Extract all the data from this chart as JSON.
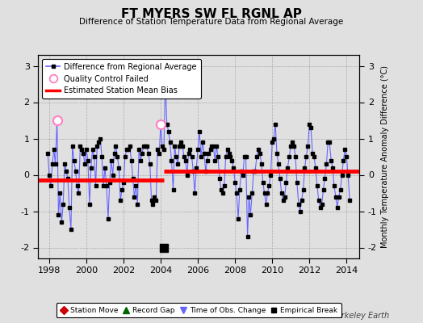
{
  "title": "FT MYERS SW FL RGNL AP",
  "subtitle": "Difference of Station Temperature Data from Regional Average",
  "ylabel": "Monthly Temperature Anomaly Difference (°C)",
  "xlabel_values": [
    1998,
    2000,
    2002,
    2004,
    2006,
    2008,
    2010,
    2012,
    2014
  ],
  "ylim": [
    -2.3,
    3.3
  ],
  "yticks": [
    -2,
    -1,
    0,
    1,
    2,
    3
  ],
  "bias_before_y": -0.15,
  "bias_after_y": 0.1,
  "bias_split": 2004.17,
  "line_color": "#6666FF",
  "marker_color": "#000000",
  "bias_color": "#FF0000",
  "bg_color": "#E0E0E0",
  "grid_color": "#AAAAAA",
  "berkeley_earth_text": "Berkeley Earth",
  "time_obs_marker_x": 2004.17,
  "empirical_break_x": 2004.17,
  "empirical_break_y": -2.0,
  "qc_failed_points": [
    [
      1998.42,
      1.5
    ],
    [
      2004.0,
      1.4
    ]
  ],
  "series_x": [
    1997.92,
    1998.0,
    1998.08,
    1998.17,
    1998.25,
    1998.33,
    1998.42,
    1998.5,
    1998.58,
    1998.67,
    1998.75,
    1998.83,
    1998.92,
    1999.0,
    1999.08,
    1999.17,
    1999.25,
    1999.33,
    1999.42,
    1999.5,
    1999.58,
    1999.67,
    1999.75,
    1999.83,
    1999.92,
    2000.0,
    2000.08,
    2000.17,
    2000.25,
    2000.33,
    2000.42,
    2000.5,
    2000.58,
    2000.67,
    2000.75,
    2000.83,
    2000.92,
    2001.0,
    2001.08,
    2001.17,
    2001.25,
    2001.33,
    2001.42,
    2001.5,
    2001.58,
    2001.67,
    2001.75,
    2001.83,
    2001.92,
    2002.0,
    2002.08,
    2002.17,
    2002.25,
    2002.33,
    2002.42,
    2002.5,
    2002.58,
    2002.67,
    2002.75,
    2002.83,
    2002.92,
    2003.0,
    2003.08,
    2003.17,
    2003.25,
    2003.33,
    2003.42,
    2003.5,
    2003.58,
    2003.67,
    2003.75,
    2003.83,
    2003.92,
    2004.0,
    2004.08,
    2004.17,
    2004.25,
    2004.33,
    2004.42,
    2004.5,
    2004.58,
    2004.67,
    2004.75,
    2004.83,
    2004.92,
    2005.0,
    2005.08,
    2005.17,
    2005.25,
    2005.33,
    2005.42,
    2005.5,
    2005.58,
    2005.67,
    2005.75,
    2005.83,
    2005.92,
    2006.0,
    2006.08,
    2006.17,
    2006.25,
    2006.33,
    2006.42,
    2006.5,
    2006.58,
    2006.67,
    2006.75,
    2006.83,
    2006.92,
    2007.0,
    2007.08,
    2007.17,
    2007.25,
    2007.33,
    2007.42,
    2007.5,
    2007.58,
    2007.67,
    2007.75,
    2007.83,
    2007.92,
    2008.0,
    2008.08,
    2008.17,
    2008.25,
    2008.33,
    2008.42,
    2008.5,
    2008.58,
    2008.67,
    2008.75,
    2008.83,
    2008.92,
    2009.0,
    2009.08,
    2009.17,
    2009.25,
    2009.33,
    2009.42,
    2009.5,
    2009.58,
    2009.67,
    2009.75,
    2009.83,
    2009.92,
    2010.0,
    2010.08,
    2010.17,
    2010.25,
    2010.33,
    2010.42,
    2010.5,
    2010.58,
    2010.67,
    2010.75,
    2010.83,
    2010.92,
    2011.0,
    2011.08,
    2011.17,
    2011.25,
    2011.33,
    2011.42,
    2011.5,
    2011.58,
    2011.67,
    2011.75,
    2011.83,
    2011.92,
    2012.0,
    2012.08,
    2012.17,
    2012.25,
    2012.33,
    2012.42,
    2012.5,
    2012.58,
    2012.67,
    2012.75,
    2012.83,
    2012.92,
    2013.0,
    2013.08,
    2013.17,
    2013.25,
    2013.33,
    2013.42,
    2013.5,
    2013.58,
    2013.67,
    2013.75,
    2013.83,
    2013.92,
    2014.0,
    2014.08,
    2014.17
  ],
  "series_y": [
    0.6,
    0.0,
    -0.3,
    0.3,
    0.7,
    0.3,
    1.5,
    -1.1,
    -0.5,
    -1.3,
    -0.8,
    0.3,
    0.1,
    -0.1,
    -0.9,
    -1.5,
    0.8,
    0.4,
    0.1,
    -0.3,
    -0.5,
    0.8,
    0.7,
    0.6,
    0.3,
    0.7,
    0.4,
    -0.8,
    0.2,
    0.7,
    0.5,
    -0.3,
    0.8,
    0.9,
    1.0,
    0.5,
    -0.3,
    0.2,
    -0.3,
    -1.2,
    -0.2,
    0.4,
    0.0,
    0.6,
    0.8,
    0.5,
    0.2,
    -0.7,
    -0.4,
    -0.2,
    0.5,
    0.7,
    0.7,
    0.8,
    0.4,
    -0.1,
    -0.6,
    -0.3,
    -0.8,
    0.7,
    0.4,
    0.6,
    0.8,
    0.8,
    0.8,
    0.6,
    0.3,
    -0.7,
    -0.8,
    -0.6,
    -0.7,
    0.7,
    0.6,
    1.4,
    0.8,
    0.7,
    2.6,
    1.4,
    1.2,
    0.9,
    0.4,
    -0.4,
    0.8,
    0.5,
    0.3,
    0.8,
    0.9,
    0.8,
    0.5,
    0.4,
    0.0,
    0.6,
    0.7,
    0.5,
    0.1,
    -0.5,
    0.2,
    0.7,
    1.2,
    0.5,
    0.9,
    0.6,
    0.1,
    0.4,
    0.6,
    0.7,
    0.8,
    0.8,
    0.4,
    0.8,
    0.5,
    -0.1,
    -0.4,
    -0.5,
    -0.3,
    0.5,
    0.7,
    0.6,
    0.5,
    0.4,
    0.2,
    -0.2,
    -0.5,
    -1.2,
    -0.4,
    0.1,
    0.0,
    0.5,
    0.5,
    -1.7,
    -0.6,
    -1.1,
    -0.5,
    0.1,
    0.1,
    0.5,
    0.7,
    0.6,
    0.3,
    -0.2,
    -0.5,
    -0.8,
    -0.5,
    -0.3,
    0.0,
    0.9,
    1.0,
    1.4,
    0.6,
    0.3,
    -0.1,
    -0.5,
    -0.7,
    -0.6,
    -0.2,
    0.2,
    0.5,
    0.8,
    0.9,
    0.8,
    0.5,
    -0.2,
    -0.8,
    -1.0,
    -0.7,
    -0.4,
    0.2,
    0.5,
    0.8,
    1.4,
    1.3,
    0.6,
    0.5,
    0.2,
    -0.3,
    -0.7,
    -0.9,
    -0.8,
    -0.4,
    -0.1,
    0.3,
    0.9,
    0.9,
    0.4,
    0.2,
    -0.3,
    -0.6,
    -0.9,
    -0.6,
    -0.4,
    0.0,
    0.4,
    0.7,
    0.5,
    0.0,
    -0.7
  ],
  "xlim": [
    1997.4,
    2014.7
  ]
}
